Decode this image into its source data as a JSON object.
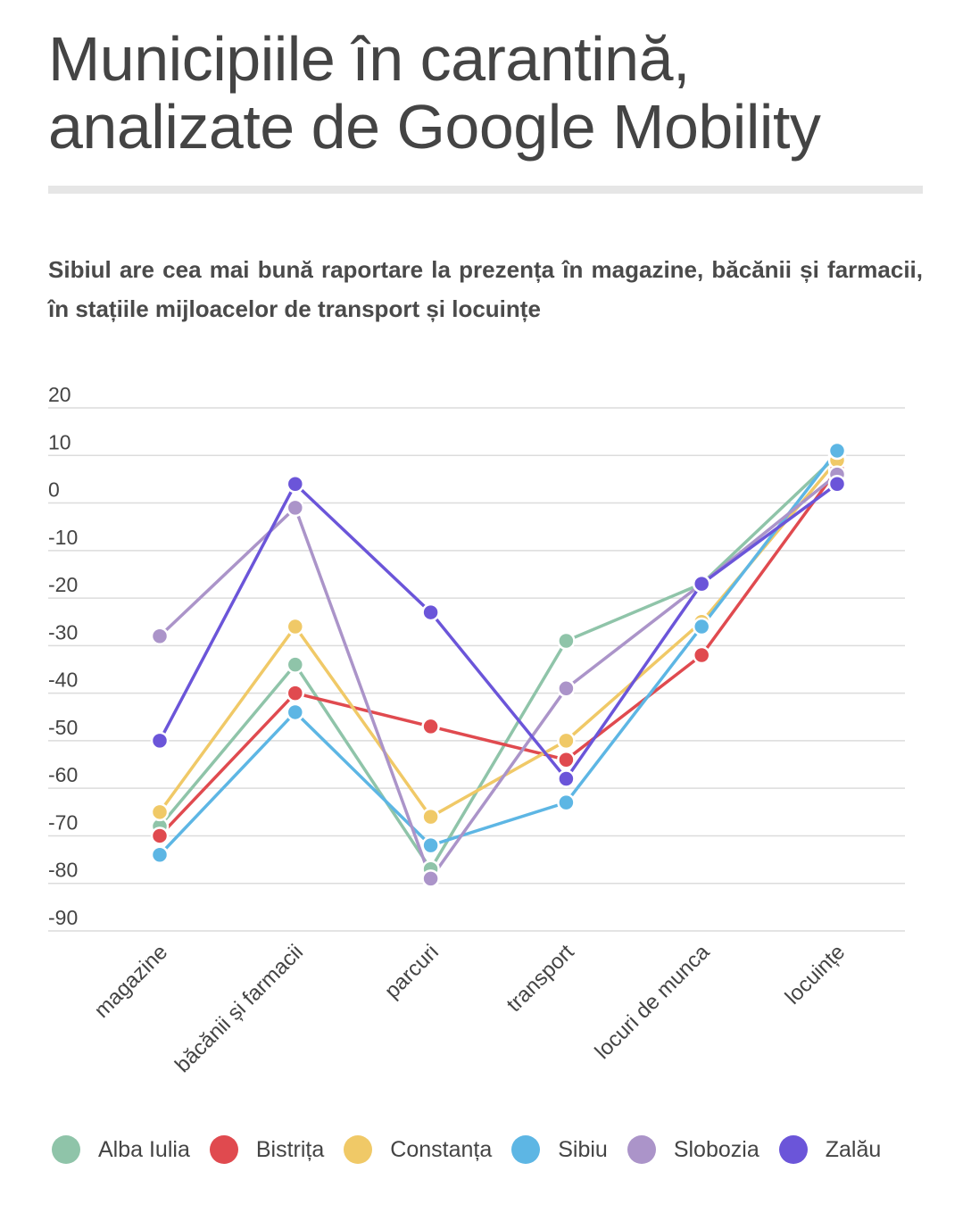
{
  "chart_data": {
    "type": "line",
    "title": "Municipiile în carantină, analizate de Google Mobility",
    "subtitle": "Sibiul are cea mai bună raportare la prezența în magazine, băcănii și farmacii, în stațiile mijloacelor de transport și locuințe",
    "categories": [
      "magazine",
      "băcănii și farmacii",
      "parcuri",
      "transport",
      "locuri de munca",
      "locuințe"
    ],
    "yticks": [
      20,
      10,
      0,
      -10,
      -20,
      -30,
      -40,
      -50,
      -60,
      -70,
      -80,
      -90
    ],
    "ylim": [
      -90,
      20
    ],
    "grid": true,
    "legend_position": "bottom",
    "series": [
      {
        "name": "Alba Iulia",
        "color": "#8fc4a9",
        "values": [
          -68,
          -34,
          -77,
          -29,
          -17,
          10
        ]
      },
      {
        "name": "Bistrița",
        "color": "#e04a4f",
        "values": [
          -70,
          -40,
          -47,
          -54,
          -32,
          7
        ]
      },
      {
        "name": "Constanța",
        "color": "#f0c967",
        "values": [
          -65,
          -26,
          -66,
          -50,
          -25,
          9
        ]
      },
      {
        "name": "Sibiu",
        "color": "#5db6e4",
        "values": [
          -74,
          -44,
          -72,
          -63,
          -26,
          11
        ]
      },
      {
        "name": "Slobozia",
        "color": "#ab94c9",
        "values": [
          -28,
          -1,
          -79,
          -39,
          -17,
          6
        ]
      },
      {
        "name": "Zalău",
        "color": "#6b55d9",
        "values": [
          -50,
          4,
          -23,
          -58,
          -17,
          4
        ]
      }
    ]
  }
}
